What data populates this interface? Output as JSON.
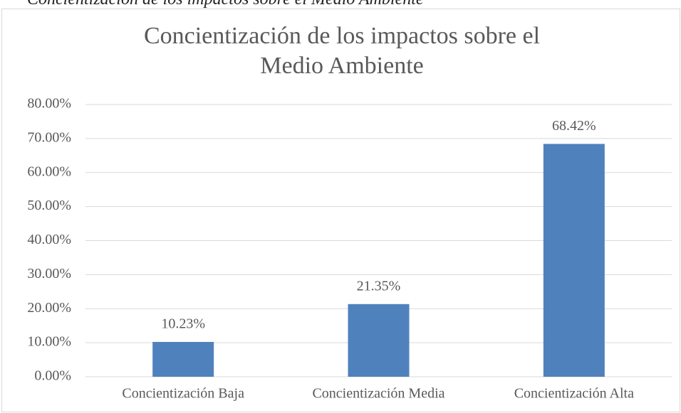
{
  "caption": "Concientización de los impactos sobre el Medio Ambiente",
  "chart_data": {
    "type": "bar",
    "title": "Concientización de los impactos sobre el Medio Ambiente",
    "categories": [
      "Concientización Baja",
      "Concientización Media",
      "Concientización Alta"
    ],
    "values": [
      10.23,
      21.35,
      68.42
    ],
    "value_labels": [
      "10.23%",
      "21.35%",
      "68.42%"
    ],
    "color": "#4f81bd",
    "ylim": [
      0,
      80
    ],
    "yticks": [
      {
        "value": 0,
        "label": "0.00%"
      },
      {
        "value": 10,
        "label": "10.00%"
      },
      {
        "value": 20,
        "label": "20.00%"
      },
      {
        "value": 30,
        "label": "30.00%"
      },
      {
        "value": 40,
        "label": "40.00%"
      },
      {
        "value": 50,
        "label": "50.00%"
      },
      {
        "value": 60,
        "label": "60.00%"
      },
      {
        "value": 70,
        "label": "70.00%"
      },
      {
        "value": 80,
        "label": "80.00%"
      }
    ],
    "grid": true
  }
}
